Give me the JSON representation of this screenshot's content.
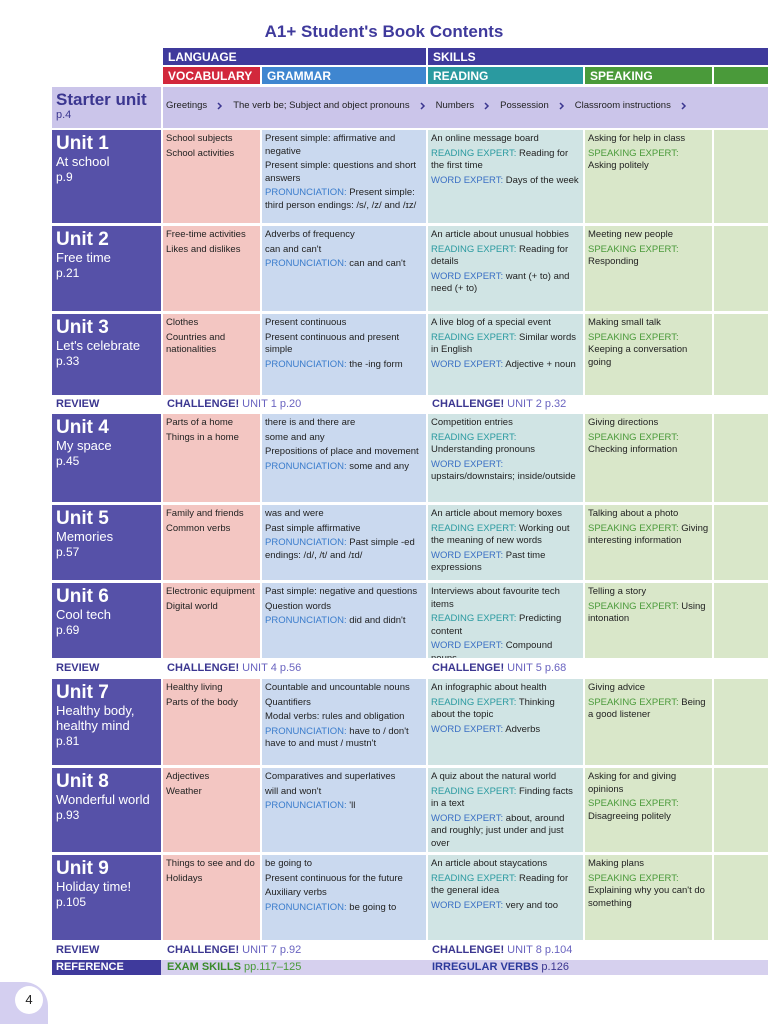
{
  "title": "A1+ Student's Book Contents",
  "headers": {
    "language": "LANGUAGE",
    "skills": "SKILLS",
    "vocabulary": "VOCABULARY",
    "grammar": "GRAMMAR",
    "reading": "READING",
    "speaking": "SPEAKING"
  },
  "starter": {
    "title": "Starter unit",
    "page": "p.4",
    "topics": [
      "Greetings",
      "The verb be; Subject and object pronouns",
      "Numbers",
      "Possession",
      "Classroom instructions"
    ]
  },
  "units": [
    {
      "title": "Unit 1",
      "name": "At school",
      "page": "p.9",
      "vocabulary": [
        "School subjects",
        "School activities"
      ],
      "grammar": [
        "Present simple: affirmative and negative",
        "Present simple: questions and short answers",
        {
          "label": "PRONUNCIATION:",
          "color": "#3a7ccc",
          "text": "Present simple: third person endings: /s/, /z/ and /ɪz/"
        }
      ],
      "reading": [
        "An online message board",
        {
          "label": "READING EXPERT:",
          "color": "#2a9aa0",
          "text": "Reading for the first time"
        },
        {
          "label": "WORD EXPERT:",
          "color": "#3a6fc4",
          "text": "Days of the week"
        }
      ],
      "speaking": [
        "Asking for help in class",
        {
          "label": "SPEAKING EXPERT:",
          "color": "#4a9a3a",
          "text": "Asking politely"
        }
      ]
    },
    {
      "title": "Unit 2",
      "name": "Free time",
      "page": "p.21",
      "vocabulary": [
        "Free-time activities",
        "Likes and dislikes"
      ],
      "grammar": [
        "Adverbs of frequency",
        "can and can't",
        {
          "label": "PRONUNCIATION:",
          "color": "#3a7ccc",
          "text": "can and can't"
        }
      ],
      "reading": [
        "An article about unusual hobbies",
        {
          "label": "READING EXPERT:",
          "color": "#2a9aa0",
          "text": "Reading for details"
        },
        {
          "label": "WORD EXPERT:",
          "color": "#3a6fc4",
          "text": "want (+ to) and need (+ to)"
        }
      ],
      "speaking": [
        "Meeting new people",
        {
          "label": "SPEAKING EXPERT:",
          "color": "#4a9a3a",
          "text": "Responding"
        }
      ]
    },
    {
      "title": "Unit 3",
      "name": "Let's celebrate",
      "page": "p.33",
      "vocabulary": [
        "Clothes",
        "Countries and nationalities"
      ],
      "grammar": [
        "Present continuous",
        "Present continuous and present simple",
        {
          "label": "PRONUNCIATION:",
          "color": "#3a7ccc",
          "text": "the -ing form"
        }
      ],
      "reading": [
        "A live blog of a special event",
        {
          "label": "READING EXPERT:",
          "color": "#2a9aa0",
          "text": "Similar words in English"
        },
        {
          "label": "WORD EXPERT:",
          "color": "#3a6fc4",
          "text": "Adjective + noun"
        }
      ],
      "speaking": [
        "Making small talk",
        {
          "label": "SPEAKING EXPERT:",
          "color": "#4a9a3a",
          "text": "Keeping a conversation going"
        }
      ]
    },
    {
      "title": "Unit 4",
      "name": "My space",
      "page": "p.45",
      "vocabulary": [
        "Parts of a home",
        "Things in a home"
      ],
      "grammar": [
        "there is and there are",
        "some and any",
        "Prepositions of place and movement",
        {
          "label": "PRONUNCIATION:",
          "color": "#3a7ccc",
          "text": "some and any"
        }
      ],
      "reading": [
        "Competition entries",
        {
          "label": "READING EXPERT:",
          "color": "#2a9aa0",
          "text": "Understanding pronouns"
        },
        {
          "label": "WORD EXPERT:",
          "color": "#3a6fc4",
          "text": "upstairs/downstairs; inside/outside"
        }
      ],
      "speaking": [
        "Giving directions",
        {
          "label": "SPEAKING EXPERT:",
          "color": "#4a9a3a",
          "text": "Checking information"
        }
      ]
    },
    {
      "title": "Unit 5",
      "name": "Memories",
      "page": "p.57",
      "vocabulary": [
        "Family and friends",
        "Common verbs"
      ],
      "grammar": [
        "was and were",
        "Past simple affirmative",
        {
          "label": "PRONUNCIATION:",
          "color": "#3a7ccc",
          "text": "Past simple -ed endings: /d/, /t/ and /ɪd/"
        }
      ],
      "reading": [
        "An article about memory boxes",
        {
          "label": "READING EXPERT:",
          "color": "#2a9aa0",
          "text": "Working out the meaning of new words"
        },
        {
          "label": "WORD EXPERT:",
          "color": "#3a6fc4",
          "text": "Past time expressions"
        }
      ],
      "speaking": [
        "Talking about a photo",
        {
          "label": "SPEAKING EXPERT:",
          "color": "#4a9a3a",
          "text": "Giving interesting information"
        }
      ]
    },
    {
      "title": "Unit 6",
      "name": "Cool tech",
      "page": "p.69",
      "vocabulary": [
        "Electronic equipment",
        "Digital world"
      ],
      "grammar": [
        "Past simple: negative and questions",
        "Question words",
        {
          "label": "PRONUNCIATION:",
          "color": "#3a7ccc",
          "text": "did and didn't"
        }
      ],
      "reading": [
        "Interviews about favourite tech items",
        {
          "label": "READING EXPERT:",
          "color": "#2a9aa0",
          "text": "Predicting content"
        },
        {
          "label": "WORD EXPERT:",
          "color": "#3a6fc4",
          "text": "Compound nouns"
        }
      ],
      "speaking": [
        "Telling a story",
        {
          "label": "SPEAKING EXPERT:",
          "color": "#4a9a3a",
          "text": "Using intonation"
        }
      ]
    },
    {
      "title": "Unit 7",
      "name": "Healthy body, healthy mind",
      "page": "p.81",
      "vocabulary": [
        "Healthy living",
        "Parts of the body"
      ],
      "grammar": [
        "Countable and uncountable nouns",
        "Quantifiers",
        "Modal verbs: rules and obligation",
        {
          "label": "PRONUNCIATION:",
          "color": "#3a7ccc",
          "text": "have to / don't have to and must / mustn't"
        }
      ],
      "reading": [
        "An infographic about health",
        {
          "label": "READING EXPERT:",
          "color": "#2a9aa0",
          "text": "Thinking about the topic"
        },
        {
          "label": "WORD EXPERT:",
          "color": "#3a6fc4",
          "text": "Adverbs"
        }
      ],
      "speaking": [
        "Giving advice",
        {
          "label": "SPEAKING EXPERT:",
          "color": "#4a9a3a",
          "text": "Being a good listener"
        }
      ]
    },
    {
      "title": "Unit 8",
      "name": "Wonderful world",
      "page": "p.93",
      "vocabulary": [
        "Adjectives",
        "Weather"
      ],
      "grammar": [
        "Comparatives and superlatives",
        "will and won't",
        {
          "label": "PRONUNCIATION:",
          "color": "#3a7ccc",
          "text": "'ll"
        }
      ],
      "reading": [
        "A quiz about the natural world",
        {
          "label": "READING EXPERT:",
          "color": "#2a9aa0",
          "text": "Finding facts in a text"
        },
        {
          "label": "WORD EXPERT:",
          "color": "#3a6fc4",
          "text": "about, around and roughly; just under and just over"
        }
      ],
      "speaking": [
        "Asking for and giving opinions",
        {
          "label": "SPEAKING EXPERT:",
          "color": "#4a9a3a",
          "text": "Disagreeing politely"
        }
      ]
    },
    {
      "title": "Unit 9",
      "name": "Holiday time!",
      "page": "p.105",
      "vocabulary": [
        "Things to see and do",
        "Holidays"
      ],
      "grammar": [
        "be going to",
        "Present continuous for the future",
        "Auxiliary verbs",
        {
          "label": "PRONUNCIATION:",
          "color": "#3a7ccc",
          "text": "be going to"
        }
      ],
      "reading": [
        "An article about staycations",
        {
          "label": "READING EXPERT:",
          "color": "#2a9aa0",
          "text": "Reading for the general idea"
        },
        {
          "label": "WORD EXPERT:",
          "color": "#3a6fc4",
          "text": "very and too"
        }
      ],
      "speaking": [
        "Making plans",
        {
          "label": "SPEAKING EXPERT:",
          "color": "#4a9a3a",
          "text": "Explaining why you can't do something"
        }
      ]
    }
  ],
  "reviews": [
    {
      "label": "REVIEW",
      "left": {
        "label": "CHALLENGE!",
        "text": "UNIT 1  p.20"
      },
      "right": {
        "label": "CHALLENGE!",
        "text": "UNIT 2  p.32"
      }
    },
    {
      "label": "REVIEW",
      "left": {
        "label": "CHALLENGE!",
        "text": "UNIT 4  p.56"
      },
      "right": {
        "label": "CHALLENGE!",
        "text": "UNIT 5  p.68"
      }
    },
    {
      "label": "REVIEW",
      "left": {
        "label": "CHALLENGE!",
        "text": "UNIT 7  p.92"
      },
      "right": {
        "label": "CHALLENGE!",
        "text": "UNIT 8  p.104"
      }
    }
  ],
  "reference": {
    "label": "REFERENCE",
    "left": {
      "label": "EXAM SKILLS",
      "text": "pp.117–125"
    },
    "right": {
      "label": "IRREGULAR VERBS",
      "text": "p.126"
    }
  },
  "page_number": "4"
}
